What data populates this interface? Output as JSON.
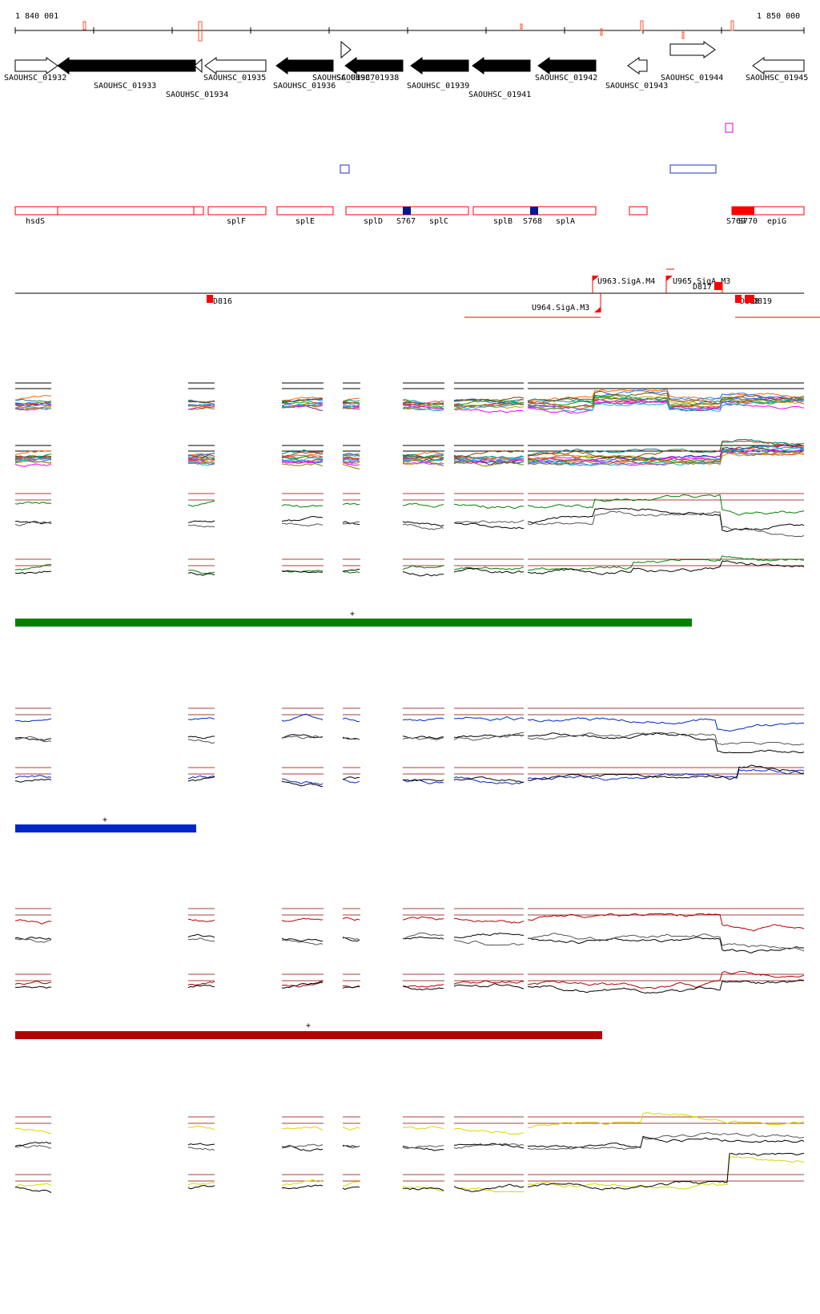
{
  "ruler": {
    "start_label": "1 840 001",
    "end_label": "1 850 000"
  },
  "genes": [
    {
      "label": "SAOUHSC_01932",
      "filled": false,
      "dir": "right"
    },
    {
      "label": "SAOUHSC_01933",
      "filled": true,
      "dir": "left"
    },
    {
      "label": "SAOUHSC_01934",
      "filled": false,
      "dir": "left"
    },
    {
      "label": "SAOUHSC_01935",
      "filled": false,
      "dir": "left"
    },
    {
      "label": "SAOUHSC_01936",
      "filled": true,
      "dir": "left"
    },
    {
      "label": "SAOUHSC_01937",
      "filled": false,
      "dir": "right"
    },
    {
      "label": "SAOUHSC_01938",
      "filled": true,
      "dir": "left"
    },
    {
      "label": "SAOUHSC_01939",
      "filled": true,
      "dir": "left"
    },
    {
      "label": "SAOUHSC_01941",
      "filled": true,
      "dir": "left"
    },
    {
      "label": "SAOUHSC_01942",
      "filled": true,
      "dir": "left"
    },
    {
      "label": "SAOUHSC_01943",
      "filled": false,
      "dir": "left"
    },
    {
      "label": "SAOUHSC_01944",
      "filled": false,
      "dir": "right"
    },
    {
      "label": "SAOUHSC_01945",
      "filled": false,
      "dir": "left"
    }
  ],
  "features": [
    "hsdS",
    "splF",
    "splE",
    "splD",
    "S767",
    "splC",
    "splB",
    "S768",
    "splA",
    "S769",
    "S770",
    "epiG"
  ],
  "regulatory": [
    "U963.SigA.M4",
    "U965.SigA.M3",
    "U964.SigA.M3",
    "D816",
    "D817",
    "D818",
    "D819"
  ],
  "bar_marker": "+",
  "colors": {
    "green": "#008000",
    "blue": "#0026c8",
    "red": "#b40000",
    "yellow": "#d8d800",
    "feature": "#ff0000",
    "guide": "#a04040"
  }
}
